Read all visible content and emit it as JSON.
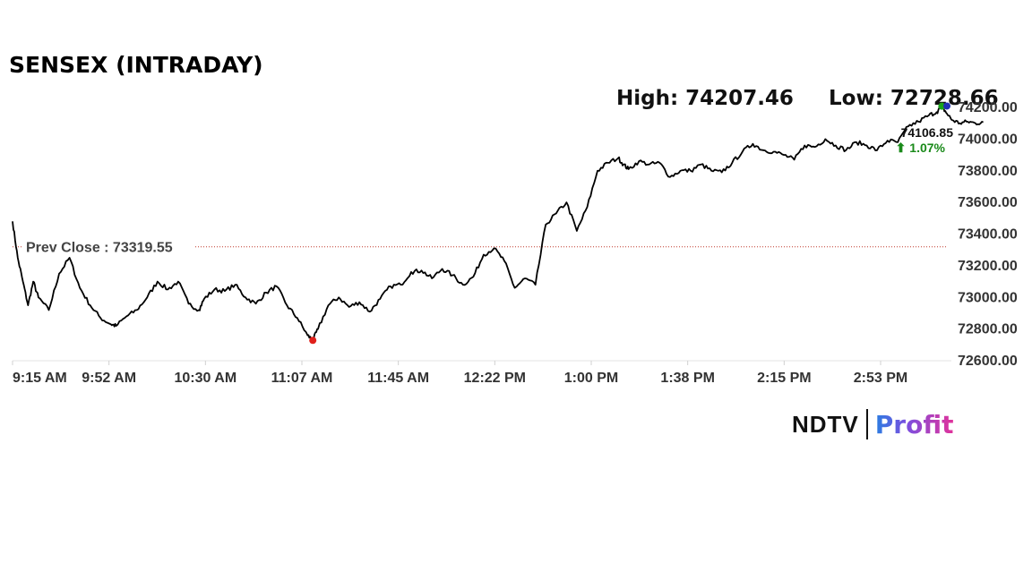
{
  "title": "SENSEX (INTRADAY)",
  "stats": {
    "high": "High: 74207.46",
    "low": "Low: 72728.66"
  },
  "prev_close_label": "Prev Close : 73319.55",
  "last_value": {
    "price": "74106.85",
    "change": "⬆ 1.07%"
  },
  "logo": {
    "left": "NDTV",
    "right": "Profit"
  },
  "colors": {
    "line": "#000000",
    "prev_close_line": "#c0392b",
    "high_marker": "#1aa31a",
    "low_marker": "#e0201b",
    "last_marker": "#1f2fb4",
    "up": "#1a8a1a"
  },
  "chart_data": {
    "type": "line",
    "title": "SENSEX (INTRADAY)",
    "xlabel": "",
    "ylabel": "",
    "x_ticks": [
      "9:15 AM",
      "9:52 AM",
      "10:30 AM",
      "11:07 AM",
      "11:45 AM",
      "12:22 PM",
      "1:00 PM",
      "1:38 PM",
      "2:15 PM",
      "2:53 PM"
    ],
    "y_ticks": [
      "72600.00",
      "72800.00",
      "73000.00",
      "73200.00",
      "73400.00",
      "73600.00",
      "73800.00",
      "74000.00",
      "74200.00"
    ],
    "ylim": [
      72600,
      74200
    ],
    "xlim_minutes": [
      0,
      362
    ],
    "grid": false,
    "prev_close": 73319.55,
    "high": {
      "minute": 359,
      "value": 74207.46
    },
    "low": {
      "minute": 116,
      "value": 72728.66
    },
    "last": {
      "minute": 375,
      "value": 74106.85
    },
    "series": [
      {
        "x_minutes": [
          0,
          2,
          4,
          6,
          8,
          10,
          14,
          18,
          22,
          26,
          30,
          34,
          38,
          40,
          44,
          48,
          52,
          56,
          60,
          64,
          68,
          72,
          74,
          78,
          82,
          86,
          90,
          94,
          98,
          102,
          106,
          110,
          114,
          116,
          118,
          122,
          126,
          130,
          134,
          138,
          142,
          146,
          150,
          154,
          158,
          162,
          166,
          170,
          174,
          178,
          182,
          186,
          190,
          194,
          198,
          202,
          206,
          210,
          214,
          218,
          222,
          226,
          230,
          234,
          236,
          238,
          242,
          246,
          250,
          254,
          258,
          262,
          266,
          270,
          274,
          278,
          282,
          286,
          290,
          294,
          298,
          302,
          306,
          310,
          314,
          318,
          322,
          326,
          330,
          334,
          338,
          342,
          346,
          350,
          354,
          357,
          359,
          361,
          363,
          366,
          369,
          372,
          375
        ],
        "values": [
          73480,
          73250,
          73100,
          72950,
          73100,
          73000,
          72920,
          73150,
          73250,
          73060,
          72950,
          72870,
          72830,
          72820,
          72880,
          72920,
          73000,
          73100,
          73050,
          73100,
          72960,
          72920,
          72990,
          73050,
          73040,
          73080,
          73000,
          72960,
          73030,
          73070,
          72950,
          72870,
          72760,
          72730,
          72800,
          72950,
          73000,
          72940,
          72970,
          72910,
          72990,
          73070,
          73080,
          73160,
          73170,
          73120,
          73180,
          73140,
          73080,
          73130,
          73270,
          73310,
          73230,
          73060,
          73120,
          73080,
          73460,
          73530,
          73600,
          73420,
          73570,
          73800,
          73850,
          73880,
          73840,
          73810,
          73860,
          73840,
          73850,
          73760,
          73800,
          73800,
          73840,
          73800,
          73790,
          73850,
          73920,
          73970,
          73930,
          73920,
          73900,
          73870,
          73960,
          73950,
          74000,
          73960,
          73930,
          73980,
          73960,
          73930,
          73990,
          73980,
          74080,
          74110,
          74150,
          74170,
          74207,
          74160,
          74120,
          74100,
          74110,
          74100,
          74106.85
        ]
      }
    ]
  }
}
